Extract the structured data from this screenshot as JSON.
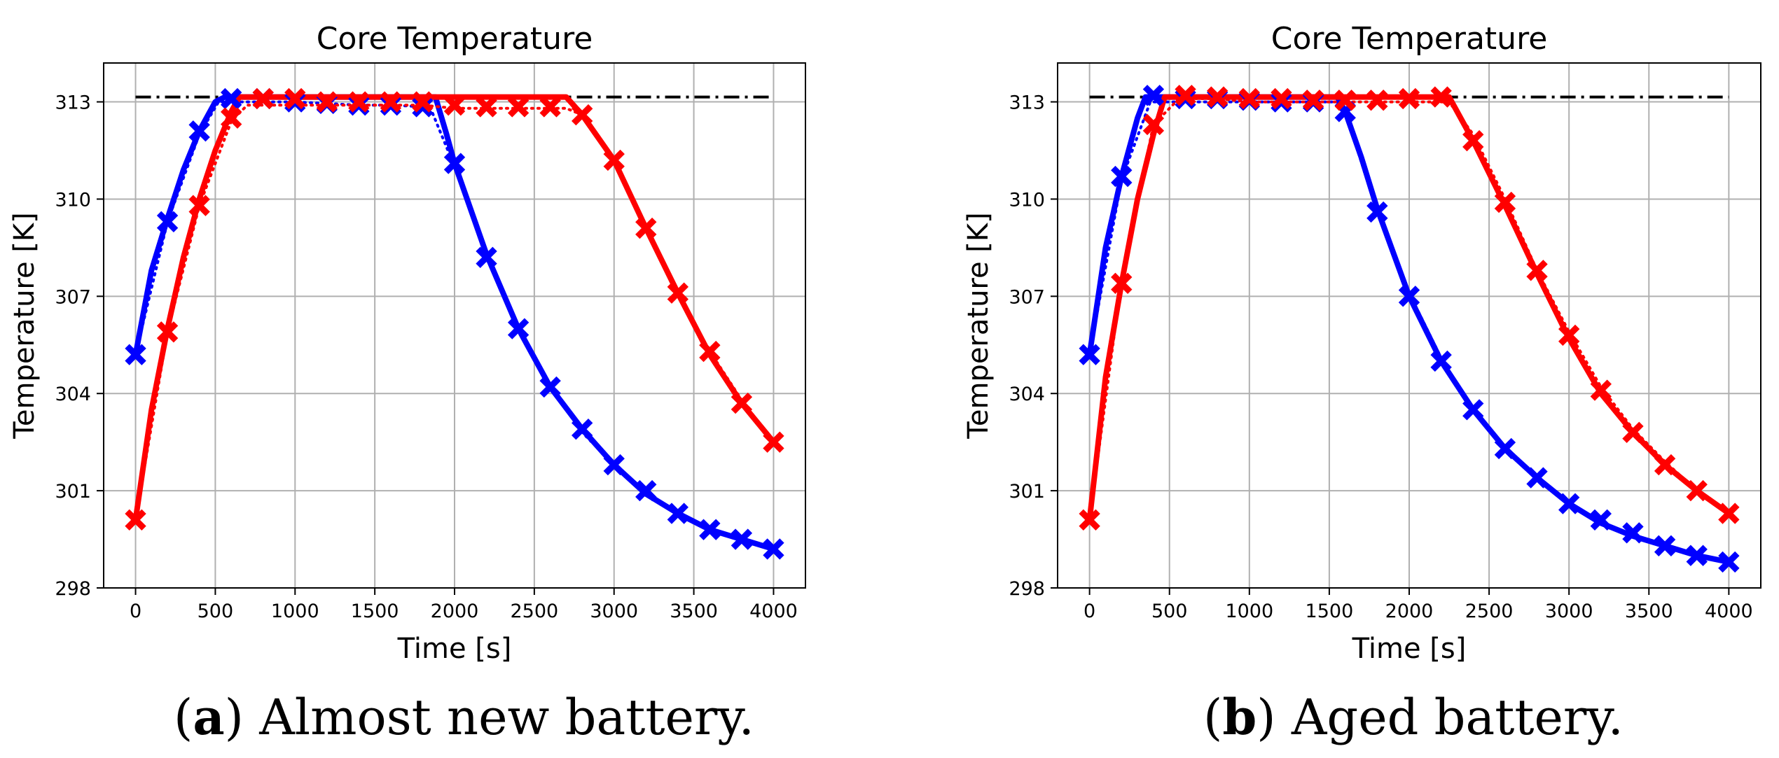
{
  "captions": [
    {
      "letter": "a",
      "text": "Almost new battery."
    },
    {
      "letter": "b",
      "text": "Aged battery."
    }
  ],
  "colors": {
    "fast": "#0000ff",
    "slow": "#ff0000",
    "reference": "#000000",
    "grid": "#b0b0b0"
  },
  "chart_data": [
    {
      "type": "line",
      "title": "Core Temperature",
      "xlabel": "Time [s]",
      "ylabel": "Temperature [K]",
      "xlim": [
        -200,
        4200
      ],
      "ylim": [
        298,
        314.2
      ],
      "xticks": [
        0,
        500,
        1000,
        1500,
        2000,
        2500,
        3000,
        3500,
        4000
      ],
      "yticks": [
        298,
        301,
        304,
        307,
        310,
        313
      ],
      "grid": true,
      "reference_line": {
        "y": 313.15,
        "style": "dash-dot",
        "x": [
          0,
          4000
        ]
      },
      "series": [
        {
          "name": "blue-solid",
          "color": "blue",
          "style": "solid",
          "x": [
            0,
            100,
            200,
            300,
            400,
            500,
            560,
            600,
            800,
            1000,
            1200,
            1400,
            1600,
            1800,
            1880,
            1950,
            2000,
            2200,
            2400,
            2600,
            2800,
            3000,
            3200,
            3400,
            3600,
            3800,
            4000
          ],
          "y": [
            305.2,
            307.8,
            309.4,
            310.9,
            312.1,
            313.0,
            313.15,
            313.15,
            313.15,
            313.15,
            313.15,
            313.15,
            313.15,
            313.15,
            313.15,
            312.0,
            311.1,
            308.3,
            306.0,
            304.2,
            302.9,
            301.8,
            300.9,
            300.3,
            299.8,
            299.5,
            299.2
          ]
        },
        {
          "name": "blue-dotted",
          "color": "blue",
          "style": "dotted",
          "x": [
            0,
            200,
            400,
            520,
            600,
            800,
            1000,
            1200,
            1400,
            1600,
            1800,
            1850,
            2000,
            2200,
            2400,
            2600,
            2800,
            3000,
            3200,
            3400,
            3600,
            3800,
            4000
          ],
          "y": [
            305.2,
            309.3,
            312.0,
            313.0,
            313.0,
            313.0,
            313.0,
            312.95,
            312.9,
            312.9,
            312.85,
            312.8,
            311.0,
            308.2,
            306.0,
            304.2,
            302.8,
            301.8,
            300.9,
            300.3,
            299.8,
            299.5,
            299.2
          ]
        },
        {
          "name": "red-solid",
          "color": "red",
          "style": "solid",
          "x": [
            0,
            100,
            200,
            300,
            400,
            500,
            600,
            650,
            800,
            1000,
            1200,
            1400,
            1600,
            1800,
            2000,
            2200,
            2400,
            2600,
            2700,
            2800,
            3000,
            3200,
            3400,
            3600,
            3800,
            4000
          ],
          "y": [
            300.1,
            303.5,
            306.0,
            308.2,
            310.0,
            311.5,
            312.7,
            313.15,
            313.15,
            313.15,
            313.15,
            313.15,
            313.15,
            313.15,
            313.15,
            313.15,
            313.15,
            313.15,
            313.15,
            312.6,
            311.2,
            309.1,
            307.1,
            305.2,
            303.7,
            302.5
          ]
        },
        {
          "name": "red-dotted",
          "color": "red",
          "style": "dotted",
          "x": [
            0,
            200,
            400,
            600,
            700,
            800,
            1000,
            1200,
            1400,
            1600,
            1800,
            2000,
            2200,
            2400,
            2600,
            2700,
            2800,
            3000,
            3200,
            3400,
            3600,
            3800,
            4000
          ],
          "y": [
            300.1,
            305.9,
            309.8,
            312.4,
            312.9,
            312.9,
            312.9,
            312.9,
            312.9,
            312.9,
            312.9,
            312.8,
            312.8,
            312.8,
            312.8,
            312.8,
            312.6,
            311.2,
            309.2,
            307.1,
            305.3,
            303.8,
            302.5
          ]
        }
      ],
      "markers": [
        {
          "color": "blue",
          "x": [
            0,
            200,
            400,
            600,
            800,
            1000,
            1200,
            1400,
            1600,
            1800,
            2000,
            2200,
            2400,
            2600,
            2800,
            3000,
            3200,
            3400,
            3600,
            3800,
            4000
          ],
          "y": [
            305.2,
            309.3,
            312.1,
            313.1,
            313.1,
            313.0,
            312.95,
            312.9,
            312.9,
            312.85,
            311.1,
            308.2,
            306.0,
            304.2,
            302.9,
            301.8,
            301.0,
            300.3,
            299.8,
            299.5,
            299.2
          ]
        },
        {
          "color": "red",
          "x": [
            0,
            200,
            400,
            600,
            800,
            1000,
            1200,
            1400,
            1600,
            1800,
            2000,
            2200,
            2400,
            2600,
            2800,
            3000,
            3200,
            3400,
            3600,
            3800,
            4000
          ],
          "y": [
            300.1,
            305.9,
            309.8,
            312.5,
            313.1,
            313.1,
            313.0,
            313.0,
            313.0,
            313.0,
            312.9,
            312.85,
            312.85,
            312.85,
            312.6,
            311.2,
            309.1,
            307.1,
            305.3,
            303.7,
            302.5
          ]
        }
      ]
    },
    {
      "type": "line",
      "title": "Core Temperature",
      "xlabel": "Time [s]",
      "ylabel": "Temperature [K]",
      "xlim": [
        -200,
        4200
      ],
      "ylim": [
        298,
        314.2
      ],
      "xticks": [
        0,
        500,
        1000,
        1500,
        2000,
        2500,
        3000,
        3500,
        4000
      ],
      "yticks": [
        298,
        301,
        304,
        307,
        310,
        313
      ],
      "grid": true,
      "reference_line": {
        "y": 313.15,
        "style": "dash-dot",
        "x": [
          0,
          4000
        ]
      },
      "series": [
        {
          "name": "blue-solid",
          "color": "blue",
          "style": "solid",
          "x": [
            0,
            100,
            200,
            300,
            350,
            400,
            600,
            800,
            1000,
            1200,
            1400,
            1550,
            1600,
            1700,
            1800,
            2000,
            2200,
            2400,
            2600,
            2800,
            3000,
            3200,
            3400,
            3600,
            3800,
            4000
          ],
          "y": [
            305.2,
            308.5,
            310.7,
            312.5,
            313.15,
            313.15,
            313.15,
            313.15,
            313.15,
            313.15,
            313.15,
            313.15,
            312.7,
            311.3,
            309.7,
            307.0,
            305.0,
            303.5,
            302.3,
            301.4,
            300.6,
            300.0,
            299.6,
            299.3,
            299.0,
            298.8
          ]
        },
        {
          "name": "blue-dotted",
          "color": "blue",
          "style": "dotted",
          "x": [
            0,
            200,
            380,
            600,
            800,
            1000,
            1200,
            1400,
            1550,
            1600,
            1800,
            2000,
            2200,
            2400,
            2600,
            2800,
            3000,
            3200,
            3400,
            3600,
            3800,
            4000
          ],
          "y": [
            305.2,
            310.6,
            313.0,
            313.0,
            313.0,
            313.0,
            313.0,
            313.0,
            313.0,
            312.7,
            309.6,
            307.1,
            305.1,
            303.5,
            302.3,
            301.4,
            300.6,
            300.0,
            299.6,
            299.3,
            299.0,
            298.8
          ]
        },
        {
          "name": "red-solid",
          "color": "red",
          "style": "solid",
          "x": [
            0,
            100,
            200,
            300,
            400,
            470,
            600,
            800,
            1000,
            1200,
            1400,
            1600,
            1800,
            2000,
            2200,
            2250,
            2400,
            2600,
            2800,
            3000,
            3200,
            3400,
            3600,
            3800,
            4000
          ],
          "y": [
            300.1,
            304.5,
            307.4,
            310.0,
            312.0,
            313.15,
            313.15,
            313.15,
            313.15,
            313.15,
            313.15,
            313.15,
            313.15,
            313.15,
            313.15,
            313.15,
            311.8,
            309.8,
            307.7,
            305.7,
            304.0,
            302.8,
            301.8,
            301.0,
            300.3
          ]
        },
        {
          "name": "red-dotted",
          "color": "red",
          "style": "dotted",
          "x": [
            0,
            200,
            400,
            560,
            600,
            800,
            1000,
            1200,
            1400,
            1600,
            1800,
            2000,
            2200,
            2250,
            2400,
            2600,
            2800,
            3000,
            3200,
            3400,
            3600,
            3800,
            4000
          ],
          "y": [
            300.1,
            307.5,
            312.3,
            313.1,
            313.1,
            313.1,
            313.0,
            313.0,
            313.0,
            313.0,
            313.0,
            313.0,
            313.0,
            313.0,
            312.0,
            310.0,
            307.8,
            305.9,
            304.2,
            302.9,
            301.9,
            301.0,
            300.3
          ]
        }
      ],
      "markers": [
        {
          "color": "blue",
          "x": [
            0,
            200,
            400,
            600,
            800,
            1000,
            1200,
            1400,
            1600,
            1800,
            2000,
            2200,
            2400,
            2600,
            2800,
            3000,
            3200,
            3400,
            3600,
            3800,
            4000
          ],
          "y": [
            305.2,
            310.7,
            313.2,
            313.1,
            313.1,
            313.05,
            313.0,
            313.0,
            312.7,
            309.6,
            307.0,
            305.0,
            303.5,
            302.3,
            301.4,
            300.6,
            300.1,
            299.7,
            299.3,
            299.0,
            298.8
          ]
        },
        {
          "color": "red",
          "x": [
            0,
            200,
            400,
            600,
            800,
            1000,
            1200,
            1400,
            1600,
            1800,
            2000,
            2200,
            2400,
            2600,
            2800,
            3000,
            3200,
            3400,
            3600,
            3800,
            4000
          ],
          "y": [
            300.1,
            307.4,
            312.3,
            313.2,
            313.15,
            313.1,
            313.1,
            313.05,
            313.05,
            313.05,
            313.1,
            313.15,
            311.8,
            309.9,
            307.8,
            305.8,
            304.1,
            302.8,
            301.8,
            301.0,
            300.3
          ]
        }
      ]
    }
  ]
}
